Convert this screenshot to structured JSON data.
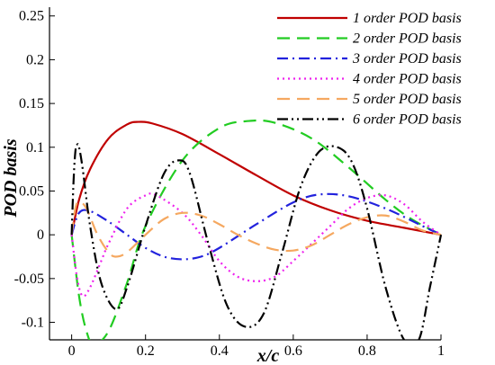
{
  "chart_data": {
    "type": "line",
    "xlabel": "x/c",
    "ylabel": "POD basis",
    "xlim": [
      -0.06,
      1.0
    ],
    "ylim": [
      -0.12,
      0.26
    ],
    "x_ticks": [
      0,
      0.2,
      0.4,
      0.6,
      0.8,
      1
    ],
    "x_tick_labels": [
      "0",
      "0.2",
      "0.4",
      "0.6",
      "0.8",
      "1"
    ],
    "y_ticks": [
      -0.1,
      -0.05,
      0,
      0.05,
      0.1,
      0.15,
      0.2,
      0.25
    ],
    "y_tick_labels": [
      "-0.1",
      "-0.05",
      "0",
      "0.05",
      "0.1",
      "0.15",
      "0.2",
      "0.25"
    ],
    "legend_position": "top-right",
    "grid": false,
    "series": [
      {
        "name": "1 order POD basis",
        "color": "#c00000",
        "dash": "solid",
        "x": [
          0,
          0.02,
          0.05,
          0.1,
          0.15,
          0.18,
          0.22,
          0.3,
          0.4,
          0.5,
          0.6,
          0.7,
          0.8,
          0.9,
          1.0
        ],
        "y": [
          0,
          0.04,
          0.075,
          0.11,
          0.126,
          0.129,
          0.127,
          0.115,
          0.092,
          0.068,
          0.045,
          0.028,
          0.016,
          0.008,
          0
        ]
      },
      {
        "name": "2 order POD basis",
        "color": "#22cc22",
        "dash": "long-dash",
        "x": [
          0,
          0.02,
          0.04,
          0.06,
          0.1,
          0.15,
          0.2,
          0.3,
          0.4,
          0.48,
          0.55,
          0.65,
          0.75,
          0.85,
          0.92,
          1.0
        ],
        "y": [
          0,
          -0.07,
          -0.11,
          -0.125,
          -0.11,
          -0.055,
          0.01,
          0.085,
          0.122,
          0.13,
          0.128,
          0.11,
          0.077,
          0.04,
          0.018,
          0
        ]
      },
      {
        "name": "3 order POD basis",
        "color": "#2222dd",
        "dash": "dash-dot",
        "x": [
          0,
          0.02,
          0.05,
          0.1,
          0.15,
          0.2,
          0.25,
          0.3,
          0.35,
          0.4,
          0.5,
          0.6,
          0.67,
          0.75,
          0.85,
          0.95,
          1.0
        ],
        "y": [
          0,
          0.025,
          0.027,
          0.015,
          0,
          -0.015,
          -0.025,
          -0.028,
          -0.025,
          -0.015,
          0.012,
          0.037,
          0.046,
          0.044,
          0.03,
          0.01,
          0
        ]
      },
      {
        "name": "4 order POD basis",
        "color": "#ee22ee",
        "dash": "dotted",
        "x": [
          0,
          0.015,
          0.03,
          0.05,
          0.08,
          0.1,
          0.15,
          0.2,
          0.23,
          0.3,
          0.35,
          0.4,
          0.45,
          0.5,
          0.55,
          0.6,
          0.7,
          0.75,
          0.8,
          0.85,
          0.9,
          0.95,
          1.0
        ],
        "y": [
          0,
          -0.05,
          -0.07,
          -0.06,
          -0.03,
          -0.01,
          0.03,
          0.045,
          0.045,
          0.025,
          0,
          -0.03,
          -0.048,
          -0.053,
          -0.048,
          -0.03,
          0.01,
          0.03,
          0.042,
          0.045,
          0.035,
          0.015,
          0
        ]
      },
      {
        "name": "5 order POD basis",
        "color": "#f5a860",
        "dash": "long-dash",
        "x": [
          0,
          0.01,
          0.02,
          0.04,
          0.07,
          0.1,
          0.12,
          0.15,
          0.2,
          0.25,
          0.3,
          0.35,
          0.4,
          0.45,
          0.5,
          0.55,
          0.6,
          0.65,
          0.7,
          0.75,
          0.8,
          0.85,
          0.9,
          0.95,
          1.0
        ],
        "y": [
          0,
          0.03,
          0.038,
          0.03,
          0,
          -0.02,
          -0.025,
          -0.02,
          0,
          0.018,
          0.025,
          0.022,
          0.012,
          0,
          -0.01,
          -0.017,
          -0.018,
          -0.012,
          0,
          0.012,
          0.02,
          0.022,
          0.015,
          0.005,
          0
        ]
      },
      {
        "name": "6 order POD basis",
        "color": "#000000",
        "dash": "dash-dot-dot",
        "x": [
          0,
          0.005,
          0.01,
          0.015,
          0.02,
          0.03,
          0.05,
          0.08,
          0.12,
          0.15,
          0.2,
          0.25,
          0.29,
          0.32,
          0.37,
          0.42,
          0.47,
          0.52,
          0.57,
          0.62,
          0.67,
          0.72,
          0.76,
          0.8,
          0.85,
          0.9,
          0.94,
          0.97,
          1.0
        ],
        "y": [
          0,
          0.06,
          0.095,
          0.103,
          0.1,
          0.075,
          0.01,
          -0.055,
          -0.085,
          -0.06,
          0.01,
          0.07,
          0.085,
          0.07,
          -0.01,
          -0.08,
          -0.105,
          -0.09,
          -0.02,
          0.055,
          0.095,
          0.1,
          0.082,
          0.03,
          -0.06,
          -0.12,
          -0.12,
          -0.06,
          0
        ]
      }
    ]
  }
}
